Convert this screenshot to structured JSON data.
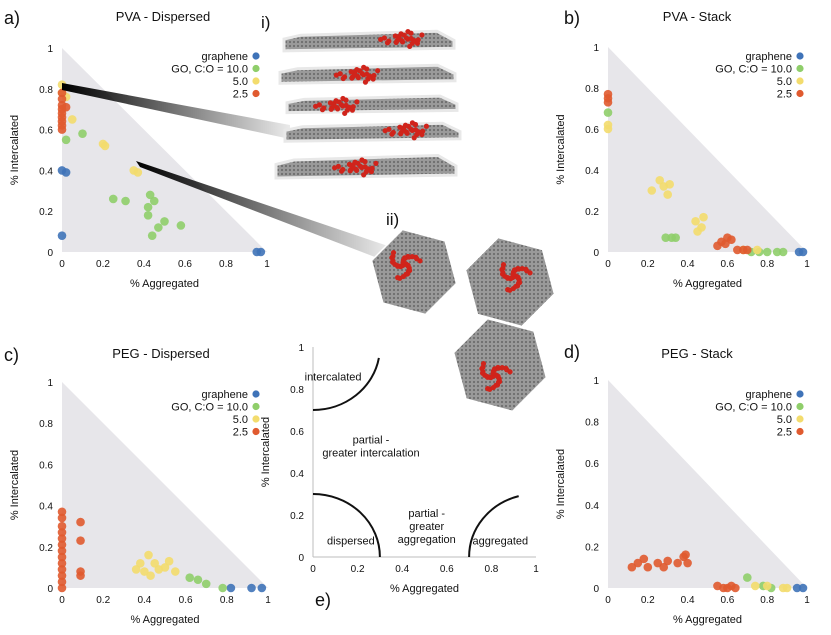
{
  "figure": {
    "inset_labels": {
      "i": "i)",
      "ii": "ii)"
    },
    "colors": {
      "graphene": "#3f73b8",
      "go10": "#8fce6a",
      "go5": "#f3dc6d",
      "go25": "#e05a2f",
      "triangle": "#e7e6ea",
      "inset_red": "#d0241b",
      "inset_sheet": "#8c8c8c"
    }
  },
  "chart_data": [
    {
      "type": "scatter",
      "panel": "a)",
      "title": "PVA - Dispersed",
      "xlabel": "% Aggregated",
      "ylabel": "% Intercalated",
      "xlim": [
        0,
        1
      ],
      "ylim": [
        0,
        1
      ],
      "xticks": [
        "0",
        "0.2",
        "0.4",
        "0.6",
        "0.8",
        "1"
      ],
      "yticks": [
        "0",
        "0.2",
        "0.4",
        "0.6",
        "0.8",
        "1"
      ],
      "legend": [
        "graphene",
        "GO, C:O = 10.0",
        "5.0",
        "2.5"
      ],
      "series": [
        {
          "name": "graphene",
          "points": [
            [
              0,
              0.08
            ],
            [
              0,
              0.4
            ],
            [
              0.02,
              0.39
            ],
            [
              0.95,
              0
            ],
            [
              0.97,
              0
            ]
          ]
        },
        {
          "name": "GO, C:O = 10.0",
          "points": [
            [
              0.02,
              0.55
            ],
            [
              0.1,
              0.58
            ],
            [
              0.25,
              0.26
            ],
            [
              0.31,
              0.25
            ],
            [
              0.42,
              0.22
            ],
            [
              0.45,
              0.25
            ],
            [
              0.43,
              0.28
            ],
            [
              0.44,
              0.08
            ],
            [
              0.47,
              0.12
            ],
            [
              0.5,
              0.15
            ],
            [
              0.58,
              0.13
            ],
            [
              0.42,
              0.18
            ]
          ]
        },
        {
          "name": "5.0",
          "points": [
            [
              0,
              0.82
            ],
            [
              0,
              0.78
            ],
            [
              0.02,
              0.76
            ],
            [
              0.05,
              0.65
            ],
            [
              0.2,
              0.53
            ],
            [
              0.21,
              0.52
            ],
            [
              0.35,
              0.4
            ],
            [
              0.37,
              0.39
            ]
          ]
        },
        {
          "name": "2.5",
          "points": [
            [
              0,
              0.78
            ],
            [
              0,
              0.75
            ],
            [
              0,
              0.72
            ],
            [
              0,
              0.7
            ],
            [
              0,
              0.68
            ],
            [
              0,
              0.66
            ],
            [
              0,
              0.64
            ],
            [
              0,
              0.62
            ],
            [
              0,
              0.6
            ],
            [
              0.02,
              0.71
            ]
          ]
        }
      ]
    },
    {
      "type": "scatter",
      "panel": "b)",
      "title": "PVA - Stack",
      "xlabel": "% Aggregated",
      "ylabel": "% Intercalated",
      "xlim": [
        0,
        1
      ],
      "ylim": [
        0,
        1
      ],
      "xticks": [
        "0",
        "0.2",
        "0.4",
        "0.6",
        "0.8",
        "1"
      ],
      "yticks": [
        "0",
        "0.2",
        "0.4",
        "0.6",
        "0.8",
        "1"
      ],
      "legend": [
        "graphene",
        "GO, C:O = 10.0",
        "5.0",
        "2.5"
      ],
      "series": [
        {
          "name": "graphene",
          "points": [
            [
              0.96,
              0
            ],
            [
              0.98,
              0
            ]
          ]
        },
        {
          "name": "GO, C:O = 10.0",
          "points": [
            [
              0,
              0.68
            ],
            [
              0.29,
              0.07
            ],
            [
              0.32,
              0.07
            ],
            [
              0.34,
              0.07
            ],
            [
              0.72,
              0
            ],
            [
              0.76,
              0
            ],
            [
              0.8,
              0
            ],
            [
              0.85,
              0
            ],
            [
              0.88,
              0
            ]
          ]
        },
        {
          "name": "5.0",
          "points": [
            [
              0,
              0.6
            ],
            [
              0,
              0.62
            ],
            [
              0.22,
              0.3
            ],
            [
              0.26,
              0.35
            ],
            [
              0.28,
              0.32
            ],
            [
              0.31,
              0.33
            ],
            [
              0.3,
              0.28
            ],
            [
              0.44,
              0.15
            ],
            [
              0.47,
              0.12
            ],
            [
              0.45,
              0.1
            ],
            [
              0.48,
              0.17
            ],
            [
              0.68,
              0.01
            ],
            [
              0.75,
              0.01
            ]
          ]
        },
        {
          "name": "2.5",
          "points": [
            [
              0,
              0.73
            ],
            [
              0,
              0.75
            ],
            [
              0,
              0.77
            ],
            [
              0.55,
              0.03
            ],
            [
              0.57,
              0.05
            ],
            [
              0.6,
              0.07
            ],
            [
              0.62,
              0.06
            ],
            [
              0.59,
              0.04
            ],
            [
              0.65,
              0.01
            ],
            [
              0.68,
              0.01
            ],
            [
              0.7,
              0.01
            ]
          ]
        }
      ]
    },
    {
      "type": "scatter",
      "panel": "c)",
      "title": "PEG - Dispersed",
      "xlabel": "% Aggregated",
      "ylabel": "% Intercalated",
      "xlim": [
        0,
        1
      ],
      "ylim": [
        0,
        1
      ],
      "xticks": [
        "0",
        "0.2",
        "0.4",
        "0.6",
        "0.8",
        "1"
      ],
      "yticks": [
        "0",
        "0.2",
        "0.4",
        "0.6",
        "0.8",
        "1"
      ],
      "legend": [
        "graphene",
        "GO, C:O = 10.0",
        "5.0",
        "2.5"
      ],
      "series": [
        {
          "name": "graphene",
          "points": [
            [
              0.82,
              0
            ],
            [
              0.92,
              0
            ],
            [
              0.97,
              0
            ]
          ]
        },
        {
          "name": "GO, C:O = 10.0",
          "points": [
            [
              0.62,
              0.05
            ],
            [
              0.66,
              0.04
            ],
            [
              0.7,
              0.02
            ],
            [
              0.78,
              0
            ]
          ]
        },
        {
          "name": "5.0",
          "points": [
            [
              0.38,
              0.12
            ],
            [
              0.42,
              0.16
            ],
            [
              0.45,
              0.12
            ],
            [
              0.47,
              0.09
            ],
            [
              0.4,
              0.08
            ],
            [
              0.5,
              0.1
            ],
            [
              0.55,
              0.08
            ],
            [
              0.43,
              0.06
            ],
            [
              0.36,
              0.09
            ],
            [
              0.52,
              0.13
            ]
          ]
        },
        {
          "name": "2.5",
          "points": [
            [
              0,
              0.37
            ],
            [
              0,
              0.34
            ],
            [
              0,
              0.3
            ],
            [
              0,
              0.27
            ],
            [
              0,
              0.24
            ],
            [
              0,
              0.21
            ],
            [
              0,
              0.18
            ],
            [
              0,
              0.15
            ],
            [
              0,
              0.12
            ],
            [
              0,
              0.09
            ],
            [
              0,
              0.06
            ],
            [
              0,
              0.03
            ],
            [
              0,
              0
            ],
            [
              0.09,
              0.32
            ],
            [
              0.09,
              0.23
            ],
            [
              0.09,
              0.08
            ],
            [
              0.09,
              0.06
            ]
          ]
        }
      ]
    },
    {
      "type": "scatter",
      "panel": "d)",
      "title": "PEG - Stack",
      "xlabel": "% Aggregated",
      "ylabel": "% Intercalated",
      "xlim": [
        0,
        1
      ],
      "ylim": [
        0,
        1
      ],
      "xticks": [
        "0",
        "0.2",
        "0.4",
        "0.6",
        "0.8",
        "1"
      ],
      "yticks": [
        "0",
        "0.2",
        "0.4",
        "0.6",
        "0.8",
        "1"
      ],
      "legend": [
        "graphene",
        "GO, C:O = 10.0",
        "5.0",
        "2.5"
      ],
      "series": [
        {
          "name": "graphene",
          "points": [
            [
              0.95,
              0
            ],
            [
              0.98,
              0
            ]
          ]
        },
        {
          "name": "GO, C:O = 10.0",
          "points": [
            [
              0.7,
              0.05
            ],
            [
              0.78,
              0.01
            ],
            [
              0.82,
              0
            ]
          ]
        },
        {
          "name": "5.0",
          "points": [
            [
              0.74,
              0.01
            ],
            [
              0.8,
              0.01
            ],
            [
              0.88,
              0
            ],
            [
              0.9,
              0
            ]
          ]
        },
        {
          "name": "2.5",
          "points": [
            [
              0.12,
              0.1
            ],
            [
              0.15,
              0.12
            ],
            [
              0.18,
              0.14
            ],
            [
              0.2,
              0.1
            ],
            [
              0.25,
              0.12
            ],
            [
              0.28,
              0.1
            ],
            [
              0.3,
              0.13
            ],
            [
              0.35,
              0.12
            ],
            [
              0.38,
              0.15
            ],
            [
              0.4,
              0.12
            ],
            [
              0.39,
              0.16
            ],
            [
              0.55,
              0.01
            ],
            [
              0.58,
              0
            ],
            [
              0.6,
              0
            ],
            [
              0.64,
              0
            ],
            [
              0.62,
              0.01
            ]
          ]
        }
      ]
    },
    {
      "type": "region-diagram",
      "panel": "e)",
      "xlabel": "% Aggregated",
      "ylabel": "% Intercalated",
      "xlim": [
        0,
        1
      ],
      "ylim": [
        0,
        1
      ],
      "xticks": [
        "0",
        "0.2",
        "0.4",
        "0.6",
        "0.8",
        "1"
      ],
      "yticks": [
        "0",
        "0.2",
        "0.4",
        "0.6",
        "0.8",
        "1"
      ],
      "regions": [
        {
          "label_lines": [
            "intercalated"
          ],
          "at": [
            0.09,
            0.84
          ]
        },
        {
          "label_lines": [
            "partial -",
            "greater intercalation"
          ],
          "at": [
            0.26,
            0.54
          ]
        },
        {
          "label_lines": [
            "partial -",
            "greater",
            "aggregation"
          ],
          "at": [
            0.51,
            0.19
          ]
        },
        {
          "label_lines": [
            "dispersed"
          ],
          "at": [
            0.17,
            0.06
          ]
        },
        {
          "label_lines": [
            "aggregated"
          ],
          "at": [
            0.84,
            0.06
          ]
        }
      ],
      "boundaries": [
        {
          "center": [
            0,
            1
          ],
          "radius": 0.3,
          "from_deg": -90,
          "to_deg": -10
        },
        {
          "center": [
            0,
            0
          ],
          "radius": 0.3,
          "from_deg": 0,
          "to_deg": 90
        },
        {
          "center": [
            1,
            0
          ],
          "radius": 0.3,
          "from_deg": 105,
          "to_deg": 180
        }
      ]
    }
  ]
}
